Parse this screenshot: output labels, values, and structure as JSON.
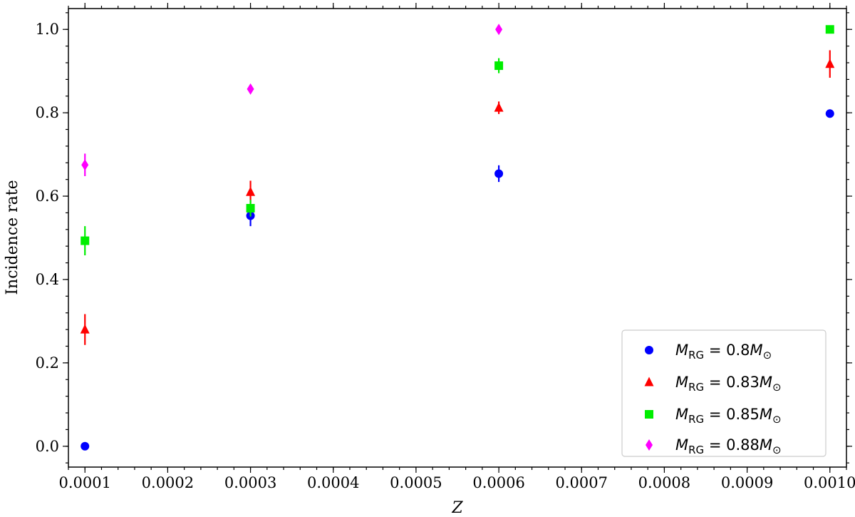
{
  "chart_data": {
    "type": "scatter",
    "title": "",
    "xlabel": "Z",
    "ylabel": "Incidence rate",
    "xlim": [
      8e-05,
      0.00102
    ],
    "ylim": [
      -0.05,
      1.05
    ],
    "x_ticks": [
      0.0001,
      0.0002,
      0.0003,
      0.0004,
      0.0005,
      0.0006,
      0.0007,
      0.0008,
      0.0009,
      0.001
    ],
    "x_tick_labels": [
      "0.0001",
      "0.0002",
      "0.0003",
      "0.0004",
      "0.0005",
      "0.0006",
      "0.0007",
      "0.0008",
      "0.0009",
      "0.0010"
    ],
    "y_ticks": [
      0.0,
      0.2,
      0.4,
      0.6,
      0.8,
      1.0
    ],
    "y_tick_labels": [
      "0.0",
      "0.2",
      "0.4",
      "0.6",
      "0.8",
      "1.0"
    ],
    "grid": false,
    "legend_position": "bottom-right",
    "series": [
      {
        "legend_main": "0.8",
        "color": "#0000ff",
        "marker": "circle",
        "points": [
          {
            "x": 0.0001,
            "y": 0.0,
            "err": 0.0
          },
          {
            "x": 0.0003,
            "y": 0.553,
            "err": 0.025
          },
          {
            "x": 0.0006,
            "y": 0.654,
            "err": 0.02
          },
          {
            "x": 0.001,
            "y": 0.798,
            "err": 0.01
          }
        ]
      },
      {
        "legend_main": "0.83",
        "color": "#ff0000",
        "marker": "triangle",
        "points": [
          {
            "x": 0.0001,
            "y": 0.28,
            "err": 0.037
          },
          {
            "x": 0.0003,
            "y": 0.61,
            "err": 0.027
          },
          {
            "x": 0.0006,
            "y": 0.812,
            "err": 0.015
          },
          {
            "x": 0.001,
            "y": 0.917,
            "err": 0.033
          }
        ]
      },
      {
        "legend_main": "0.85",
        "color": "#00ee00",
        "marker": "square",
        "points": [
          {
            "x": 0.0001,
            "y": 0.493,
            "err": 0.035
          },
          {
            "x": 0.0003,
            "y": 0.571,
            "err": 0.02
          },
          {
            "x": 0.0006,
            "y": 0.913,
            "err": 0.018
          },
          {
            "x": 0.001,
            "y": 1.0,
            "err": 0.0
          }
        ]
      },
      {
        "legend_main": "0.88",
        "color": "#ff00ff",
        "marker": "diamond",
        "points": [
          {
            "x": 0.0001,
            "y": 0.675,
            "err": 0.027
          },
          {
            "x": 0.0003,
            "y": 0.857,
            "err": 0.01
          },
          {
            "x": 0.0006,
            "y": 1.0,
            "err": 0.0
          }
        ]
      }
    ]
  }
}
